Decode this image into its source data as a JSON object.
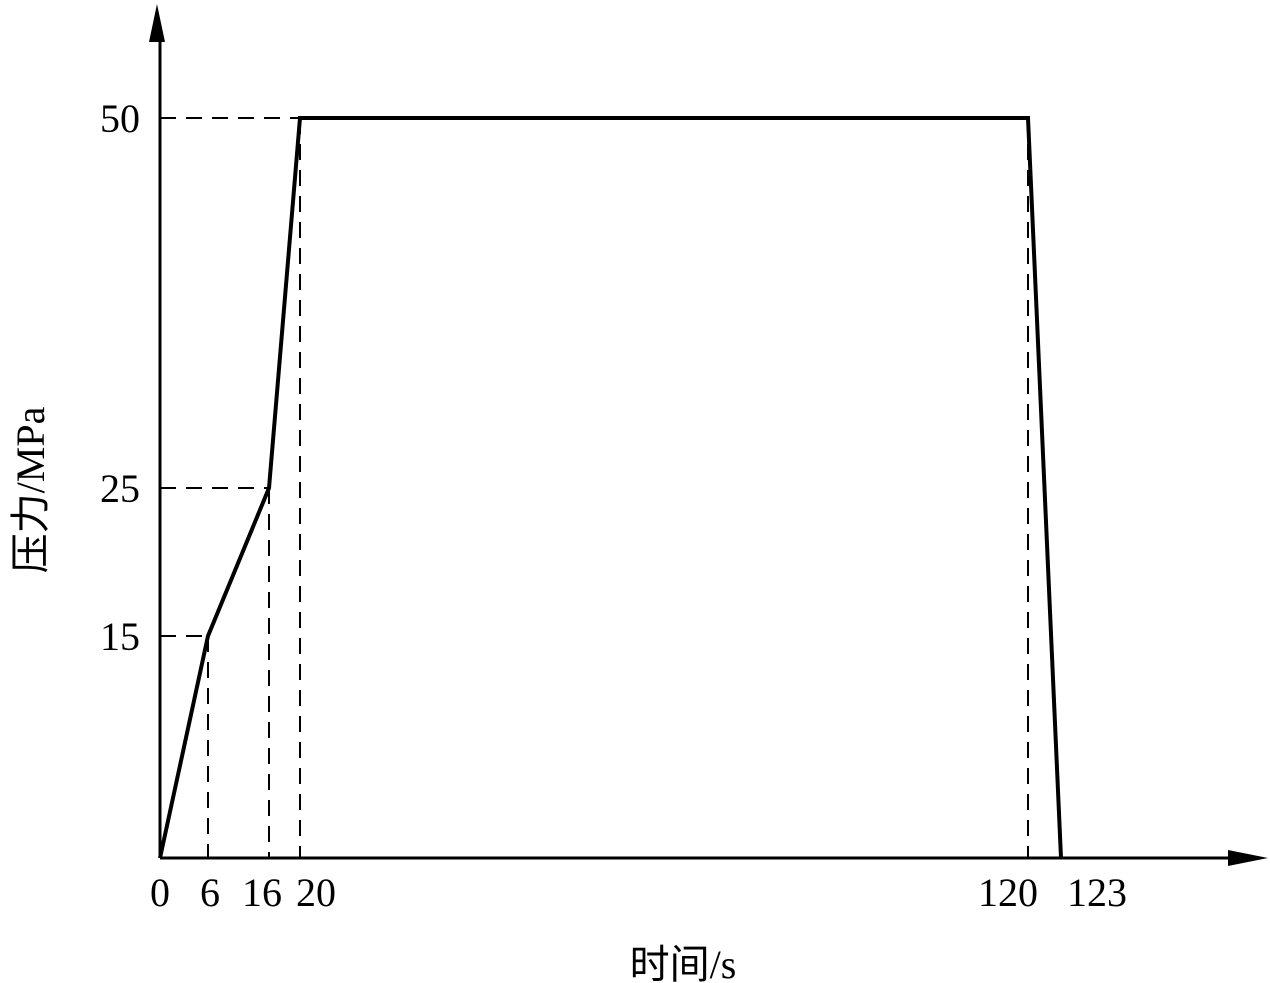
{
  "chart_data": {
    "type": "line",
    "title": "",
    "xlabel": "时间/s",
    "ylabel": "压力/MPa",
    "x": [
      0,
      6,
      16,
      20,
      120,
      123
    ],
    "series": [
      {
        "values": [
          0,
          15,
          25,
          50,
          50,
          0
        ]
      }
    ],
    "x_ticks": [
      "0",
      "6",
      "16",
      "20",
      "120",
      "123"
    ],
    "y_ticks": [
      "15",
      "25",
      "50"
    ],
    "x_scale_note": "x axis not to scale",
    "grid": false,
    "line_color": "#000000",
    "reference_lines": "dashed guide lines from each vertex to both axes"
  }
}
